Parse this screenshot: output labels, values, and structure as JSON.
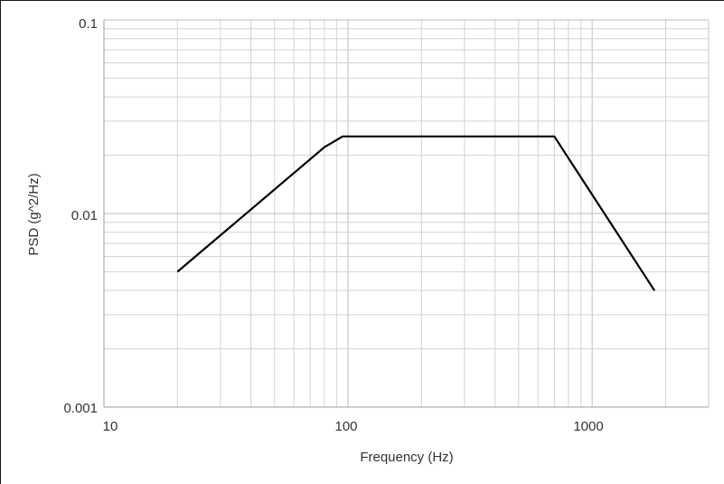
{
  "chart_data": {
    "type": "line",
    "xscale": "log",
    "yscale": "log",
    "xlim": [
      10,
      3000
    ],
    "ylim": [
      0.001,
      0.1
    ],
    "grid": true,
    "xlabel": "Frequency (Hz)",
    "ylabel": "PSD (g^2/Hz)",
    "xtick_labels": [
      "10",
      "100",
      "1000"
    ],
    "ytick_labels": [
      "0.1",
      "0.01",
      "0.001"
    ],
    "series": [
      {
        "color": "#000000",
        "x": [
          20,
          80,
          95,
          700,
          1800
        ],
        "y": [
          0.005,
          0.022,
          0.025,
          0.025,
          0.004
        ]
      }
    ]
  }
}
